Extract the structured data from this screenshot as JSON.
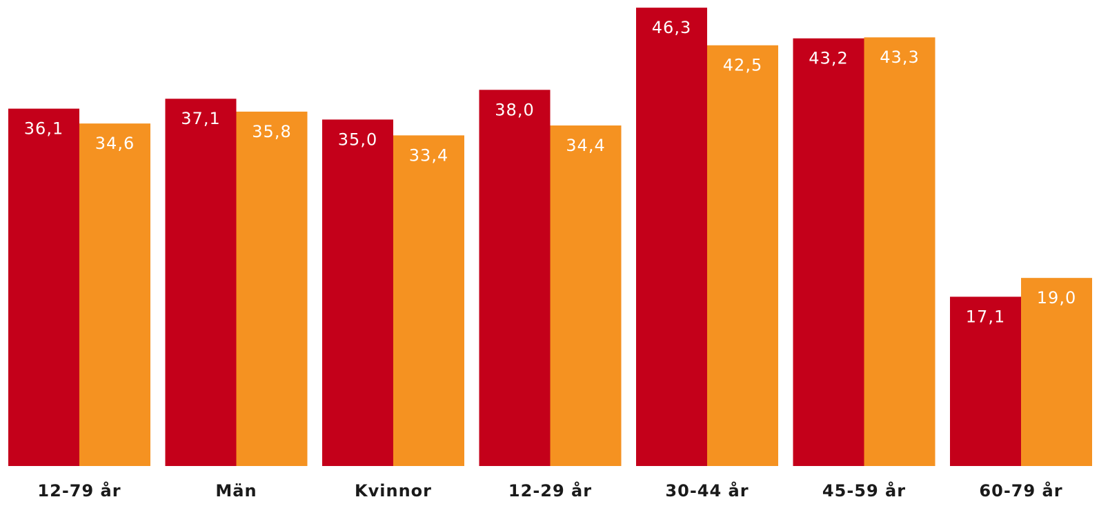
{
  "chart_data": {
    "type": "bar",
    "categories": [
      "12-79 år",
      "Män",
      "Kvinnor",
      "12-29 år",
      "30-44 år",
      "45-59 år",
      "60-79 år"
    ],
    "series": [
      {
        "values": [
          36.1,
          37.1,
          35.0,
          38.0,
          46.3,
          43.2,
          17.1
        ],
        "labels": [
          "36,1",
          "37,1",
          "35,0",
          "38,0",
          "46,3",
          "43,2",
          "17,1"
        ],
        "color": "#c4001a"
      },
      {
        "values": [
          34.6,
          35.8,
          33.4,
          34.4,
          42.5,
          43.3,
          19.0
        ],
        "labels": [
          "34,6",
          "35,8",
          "33,4",
          "34,4",
          "42,5",
          "43,3",
          "19,0"
        ],
        "color": "#f59221"
      }
    ],
    "title": "",
    "xlabel": "",
    "ylabel": "",
    "ylim": [
      0,
      47
    ],
    "grid": false,
    "legend": "none"
  }
}
